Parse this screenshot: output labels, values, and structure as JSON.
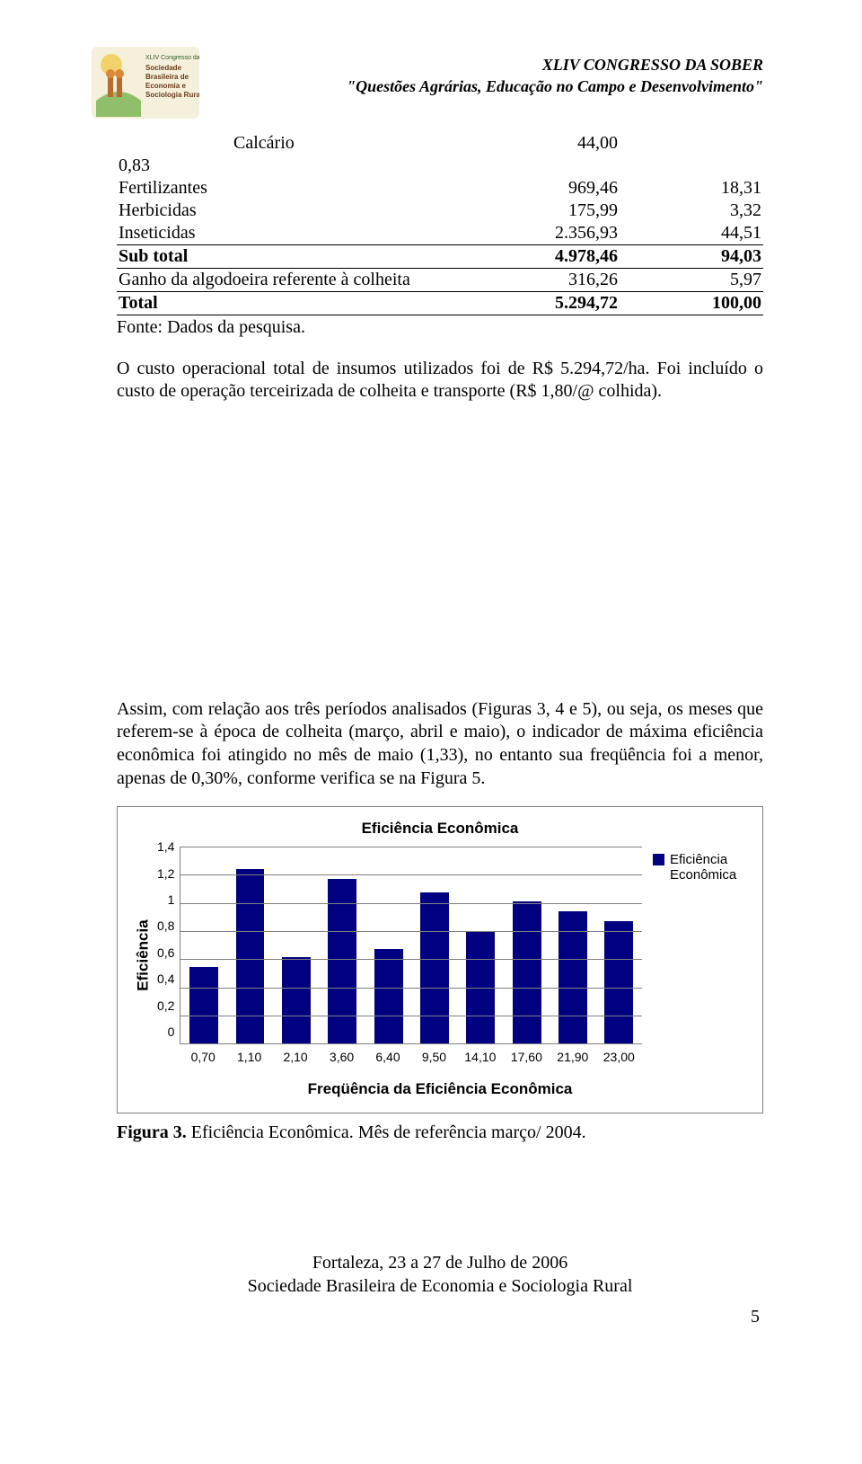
{
  "header": {
    "line1": "XLIV CONGRESSO DA SOBER",
    "line2": "\"Questões Agrárias, Educação no Campo e Desenvolvimento\"",
    "logo_text_top": "XLIV Congresso da",
    "logo_text_brand1": "Sociedade",
    "logo_text_brand2": "Brasileira de",
    "logo_text_brand3": "Economia e",
    "logo_text_brand4": "Sociologia Rural"
  },
  "table": {
    "rows": [
      {
        "label": "Calcário",
        "indent": true,
        "col1": "44,00",
        "col2": "",
        "underline": false,
        "bold": false
      },
      {
        "label": "0,83",
        "indent": false,
        "col1": "",
        "col2": "",
        "underline": false,
        "bold": false
      },
      {
        "label": "Fertilizantes",
        "indent": false,
        "col1": "969,46",
        "col2": "18,31",
        "underline": false,
        "bold": false
      },
      {
        "label": "Herbicidas",
        "indent": false,
        "col1": "175,99",
        "col2": "3,32",
        "underline": false,
        "bold": false
      },
      {
        "label": "Inseticidas",
        "indent": false,
        "col1": "2.356,93",
        "col2": "44,51",
        "underline": true,
        "bold": false
      },
      {
        "label": "Sub total",
        "indent": false,
        "col1": "4.978,46",
        "col2": "94,03",
        "underline": true,
        "bold": true
      },
      {
        "label": "Ganho da algodoeira referente à colheita",
        "indent": false,
        "col1": "316,26",
        "col2": "5,97",
        "underline": true,
        "bold": false
      },
      {
        "label": "Total",
        "indent": false,
        "col1": "5.294,72",
        "col2": "100,00",
        "underline": true,
        "bold": true
      }
    ],
    "fonte": "Fonte: Dados da pesquisa."
  },
  "para1": "O custo operacional total de insumos utilizados foi de R$ 5.294,72/ha. Foi incluído o custo de operação terceirizada de colheita e transporte (R$ 1,80/@ colhida).",
  "para2": "Assim, com relação aos três períodos analisados (Figuras 3,  4 e 5), ou seja, os meses que referem-se à época de colheita (março, abril e maio), o indicador de máxima eficiência econômica foi atingido no mês de maio (1,33), no entanto sua freqüência foi a menor, apenas de 0,30%, conforme verifica se na Figura 5.",
  "chart": {
    "title": "Eficiência Econômica",
    "ylabel": "Eficiência",
    "xlabel": "Freqüência da Eficiência Econômica",
    "legend_label": "Eficiência Econômica",
    "ymax": 1.4,
    "ystep": 0.2,
    "yticks": [
      "1,4",
      "1,2",
      "1",
      "0,8",
      "0,6",
      "0,4",
      "0,2",
      "0"
    ],
    "bar_color": "#000080",
    "grid_color": "#808080",
    "background_color": "#ffffff",
    "categories": [
      "0,70",
      "1,10",
      "2,10",
      "3,60",
      "6,40",
      "9,50",
      "14,10",
      "17,60",
      "21,90",
      "23,00"
    ],
    "values": [
      0.55,
      1.25,
      0.62,
      1.18,
      0.68,
      1.08,
      0.8,
      1.02,
      0.95,
      0.88
    ]
  },
  "figcaption": {
    "bold": "Figura 3.",
    "rest": "  Eficiência Econômica. Mês de referência março/ 2004."
  },
  "footer": {
    "line1": "Fortaleza, 23 a 27 de Julho de 2006",
    "line2": "Sociedade Brasileira de Economia e Sociologia Rural",
    "pagenum": "5"
  }
}
